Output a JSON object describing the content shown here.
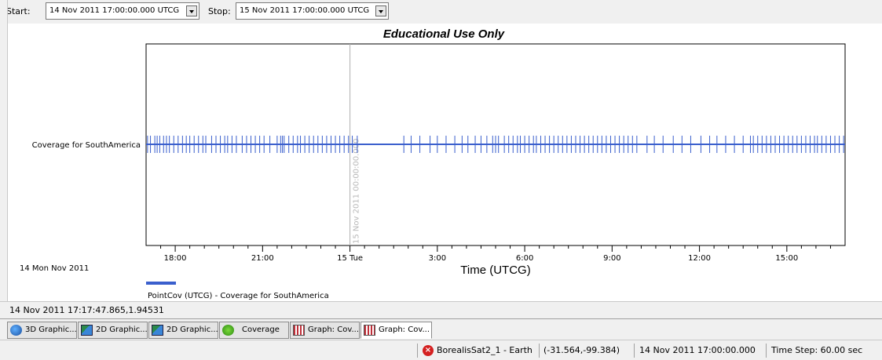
{
  "toolbar": {
    "start_label": "Start:",
    "start_value": "14 Nov 2011 17:00:00.000 UTCG",
    "stop_label": "Stop:",
    "stop_value": "15 Nov 2011 17:00:00.000 UTCG"
  },
  "chart_data": {
    "type": "line",
    "title": "Educational Use Only",
    "xlabel": "Time (UTCG)",
    "ylabel": "",
    "y_category": "Coverage for SouthAmerica",
    "x_tick_labels": [
      "18:00",
      "21:00",
      "15 Tue",
      "3:00",
      "6:00",
      "9:00",
      "12:00",
      "15:00"
    ],
    "x_tick_hours": [
      1,
      4,
      7,
      10,
      13,
      16,
      19,
      22
    ],
    "xlim_hours": [
      0,
      24
    ],
    "date_caption": "14 Mon  Nov 2011",
    "marker_label": "15 Nov 2011 00:00:00.000",
    "marker_hour": 7,
    "legend_entry": "PointCov (UTCG) - Coverage for SouthAmerica",
    "series_color": "#3a5fcd",
    "coverage_event_hours": [
      0.05,
      0.15,
      0.3,
      0.38,
      0.47,
      0.6,
      0.7,
      0.8,
      0.95,
      1.1,
      1.25,
      1.38,
      1.5,
      1.65,
      1.8,
      1.95,
      2.05,
      2.25,
      2.4,
      2.55,
      2.7,
      2.8,
      2.95,
      3.1,
      3.3,
      3.45,
      3.6,
      3.75,
      3.9,
      4.05,
      4.25,
      4.5,
      4.62,
      4.68,
      4.74,
      4.9,
      5.05,
      5.2,
      5.3,
      5.45,
      5.6,
      5.75,
      5.9,
      6.05,
      6.2,
      6.35,
      6.5,
      6.65,
      6.8,
      6.95,
      7.08,
      7.25,
      8.85,
      9.1,
      9.4,
      9.75,
      10.0,
      10.3,
      10.6,
      10.85,
      11.05,
      11.3,
      11.5,
      11.7,
      11.9,
      12.0,
      12.1,
      12.3,
      12.45,
      12.6,
      12.75,
      12.85,
      13.0,
      13.15,
      13.3,
      13.4,
      13.55,
      13.7,
      13.85,
      14.0,
      14.15,
      14.3,
      14.45,
      14.6,
      14.75,
      14.9,
      15.05,
      15.2,
      15.35,
      15.5,
      15.65,
      15.8,
      15.95,
      16.1,
      16.25,
      16.4,
      16.55,
      16.7,
      16.85,
      17.2,
      17.45,
      17.75,
      18.1,
      18.4,
      18.7,
      19.05,
      19.35,
      19.6,
      19.9,
      20.2,
      20.5,
      20.75,
      20.85,
      21.0,
      21.15,
      21.3,
      21.45,
      21.6,
      21.75,
      21.9,
      22.05,
      22.2,
      22.35,
      22.5,
      22.65,
      22.8,
      22.95,
      23.05,
      23.2,
      23.35,
      23.5,
      23.65,
      23.8,
      23.95
    ]
  },
  "status_row": {
    "cursor_readout": "14 Nov 2011 17:17:47.865,1.94531"
  },
  "tabs": [
    {
      "label": "3D Graphic...",
      "icon": "globe-icon"
    },
    {
      "label": "2D Graphic...",
      "icon": "map-icon"
    },
    {
      "label": "2D Graphic...",
      "icon": "map-icon"
    },
    {
      "label": "Coverage",
      "icon": "coverage-icon"
    },
    {
      "label": "Graph:  Cov...",
      "icon": "graph-icon"
    },
    {
      "label": "Graph:  Cov...",
      "icon": "graph-icon"
    }
  ],
  "statusbar": {
    "object": "BorealisSat2_1 - Earth",
    "coords": "(-31.564,-99.384)",
    "time": "14 Nov 2011 17:00:00.000",
    "time_step": "Time Step: 60.00 sec"
  }
}
